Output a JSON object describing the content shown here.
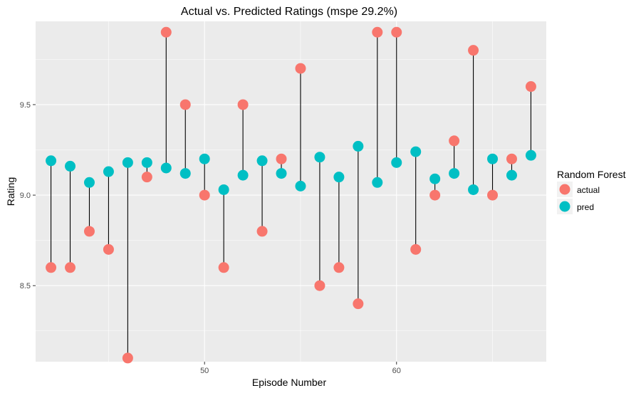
{
  "chart_data": {
    "type": "scatter",
    "title": "Actual vs. Predicted Ratings (mspe 29.2%)",
    "xlabel": "Episode Number",
    "ylabel": "Rating",
    "xlim": [
      41.2,
      67.8
    ],
    "ylim": [
      8.08,
      9.96
    ],
    "x_ticks": [
      50,
      60
    ],
    "y_ticks": [
      8.5,
      9.0,
      9.5
    ],
    "y_tick_labels": [
      "8.5",
      "9.0",
      "9.5"
    ],
    "x_tick_labels": [
      "50",
      "60"
    ],
    "grid": true,
    "legend": {
      "title": "Random Forest",
      "position": "right"
    },
    "series": [
      {
        "name": "actual",
        "color": "#F8766D",
        "points": [
          [
            42,
            8.6
          ],
          [
            43,
            8.6
          ],
          [
            44,
            8.8
          ],
          [
            45,
            8.7
          ],
          [
            46,
            8.1
          ],
          [
            47,
            9.1
          ],
          [
            48,
            9.9
          ],
          [
            49,
            9.5
          ],
          [
            50,
            9.0
          ],
          [
            51,
            8.6
          ],
          [
            52,
            9.5
          ],
          [
            53,
            8.8
          ],
          [
            54,
            9.2
          ],
          [
            55,
            9.7
          ],
          [
            56,
            8.5
          ],
          [
            57,
            8.6
          ],
          [
            58,
            8.4
          ],
          [
            59,
            9.9
          ],
          [
            60,
            9.9
          ],
          [
            61,
            8.7
          ],
          [
            62,
            9.0
          ],
          [
            63,
            9.3
          ],
          [
            64,
            9.8
          ],
          [
            65,
            9.0
          ],
          [
            66,
            9.2
          ],
          [
            67,
            9.6
          ]
        ]
      },
      {
        "name": "pred",
        "color": "#00BFC4",
        "points": [
          [
            42,
            9.19
          ],
          [
            43,
            9.16
          ],
          [
            44,
            9.07
          ],
          [
            45,
            9.13
          ],
          [
            46,
            9.18
          ],
          [
            47,
            9.18
          ],
          [
            48,
            9.15
          ],
          [
            49,
            9.12
          ],
          [
            50,
            9.2
          ],
          [
            51,
            9.03
          ],
          [
            52,
            9.11
          ],
          [
            53,
            9.19
          ],
          [
            54,
            9.12
          ],
          [
            55,
            9.05
          ],
          [
            56,
            9.21
          ],
          [
            57,
            9.1
          ],
          [
            58,
            9.27
          ],
          [
            59,
            9.07
          ],
          [
            60,
            9.18
          ],
          [
            61,
            9.24
          ],
          [
            62,
            9.09
          ],
          [
            63,
            9.12
          ],
          [
            64,
            9.03
          ],
          [
            65,
            9.2
          ],
          [
            66,
            9.11
          ],
          [
            67,
            9.22
          ]
        ]
      }
    ]
  },
  "colors": {
    "panel_background": "#EBEBEB",
    "grid_major": "#FFFFFF",
    "segment": "#000000"
  }
}
